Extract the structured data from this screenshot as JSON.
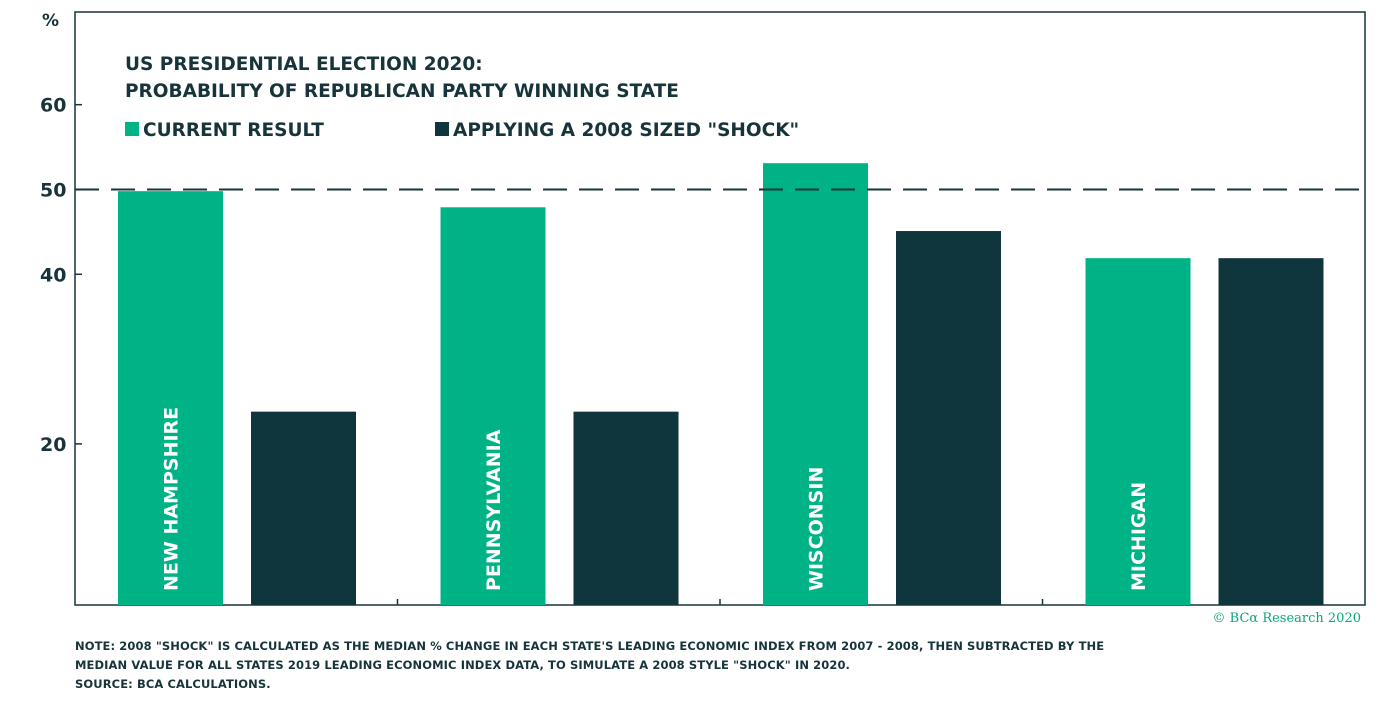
{
  "chart_data": {
    "type": "bar",
    "title_line1": "US PRESIDENTIAL ELECTION 2020:",
    "title_line2": "PROBABILITY OF REPUBLICAN PARTY WINNING STATE",
    "ylabel": "%",
    "yticks": [
      20,
      40,
      50,
      60
    ],
    "ylim": [
      1,
      72
    ],
    "reference_line": 50,
    "categories": [
      "NEW HAMPSHIRE",
      "PENNSYLVANIA",
      "WISCONSIN",
      "MICHIGAN"
    ],
    "series": [
      {
        "name": "CURRENT RESULT",
        "color": "#00b386",
        "values": [
          49.8,
          47.9,
          53.1,
          41.9
        ]
      },
      {
        "name": "APPLYING A 2008 SIZED \"SHOCK\"",
        "color": "#10363d",
        "values": [
          23.8,
          23.8,
          45.1,
          41.9
        ]
      }
    ]
  },
  "footer": {
    "copyright": "© BCα Research 2020",
    "note_line1": "NOTE: 2008 \"SHOCK\" IS CALCULATED  AS THE MEDIAN % CHANGE IN EACH  STATE'S LEADING  ECONOMIC INDEX  FROM 2007 - 2008, THEN SUBTRACTED  BY THE",
    "note_line2": "MEDIAN  VALUE FOR ALL  STATES 2019 LEADING  ECONOMIC INDEX DATA, TO SIMULATE A 2008 STYLE \"SHOCK\" IN 2020.",
    "source": "SOURCE:  BCA CALCULATIONS."
  }
}
